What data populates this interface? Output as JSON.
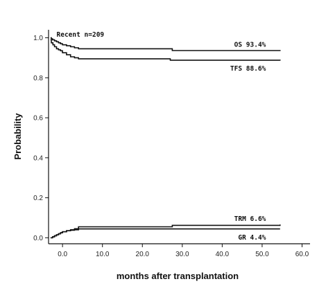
{
  "chart_data": {
    "type": "line",
    "xlabel": "months after transplantation",
    "ylabel": "Probability",
    "xlim": [
      -3.5,
      62
    ],
    "ylim": [
      -0.03,
      1.04
    ],
    "x_ticks": [
      0,
      10,
      20,
      30,
      40,
      50,
      60
    ],
    "x_tick_labels": [
      "0.0",
      "10.0",
      "20.0",
      "30.0",
      "40.0",
      "50.0",
      "60.0"
    ],
    "y_ticks": [
      0,
      0.2,
      0.4,
      0.6,
      0.8,
      1.0
    ],
    "y_tick_labels": [
      "0.0",
      "0.2",
      "0.4",
      "0.6",
      "0.8",
      "1.0"
    ],
    "grid": false,
    "annotations": [
      {
        "text": "Recent  n=209",
        "x": -1.5,
        "y": 1.005
      },
      {
        "text": "OS 93.4%",
        "x": 43,
        "y": 0.955
      },
      {
        "text": "TFS 88.6%",
        "x": 42,
        "y": 0.835
      },
      {
        "text": "TRM 6.6%",
        "x": 43,
        "y": 0.085
      },
      {
        "text": "GR 4.4%",
        "x": 44,
        "y": -0.01
      }
    ],
    "series": [
      {
        "x": [
          -3,
          -2.8,
          -2.5,
          -2,
          -1.5,
          -1,
          -0.5,
          0,
          1,
          2,
          3,
          4,
          27,
          27.5,
          54.5
        ],
        "y": [
          1.0,
          0.995,
          0.99,
          0.985,
          0.98,
          0.975,
          0.97,
          0.965,
          0.96,
          0.955,
          0.95,
          0.945,
          0.945,
          0.936,
          0.934
        ]
      },
      {
        "x": [
          -3,
          -2.8,
          -2.4,
          -2,
          -1.5,
          -1,
          -0.5,
          0,
          1,
          2,
          3,
          4,
          26.5,
          27,
          54.5
        ],
        "y": [
          0.99,
          0.975,
          0.965,
          0.955,
          0.945,
          0.94,
          0.935,
          0.925,
          0.915,
          0.905,
          0.9,
          0.895,
          0.895,
          0.888,
          0.886
        ]
      },
      {
        "x": [
          -3,
          -2.5,
          -2,
          -1.5,
          -1,
          -0.5,
          0,
          1,
          2,
          3,
          4,
          27,
          27.5,
          54.5
        ],
        "y": [
          0.0,
          0.005,
          0.01,
          0.015,
          0.02,
          0.025,
          0.03,
          0.035,
          0.04,
          0.045,
          0.055,
          0.055,
          0.062,
          0.066
        ]
      },
      {
        "x": [
          -3,
          -2.5,
          -2,
          -1.5,
          -1,
          -0.5,
          0,
          1,
          2,
          3,
          4,
          54.5
        ],
        "y": [
          0.0,
          0.005,
          0.01,
          0.015,
          0.02,
          0.025,
          0.03,
          0.035,
          0.038,
          0.04,
          0.044,
          0.044
        ]
      }
    ]
  }
}
